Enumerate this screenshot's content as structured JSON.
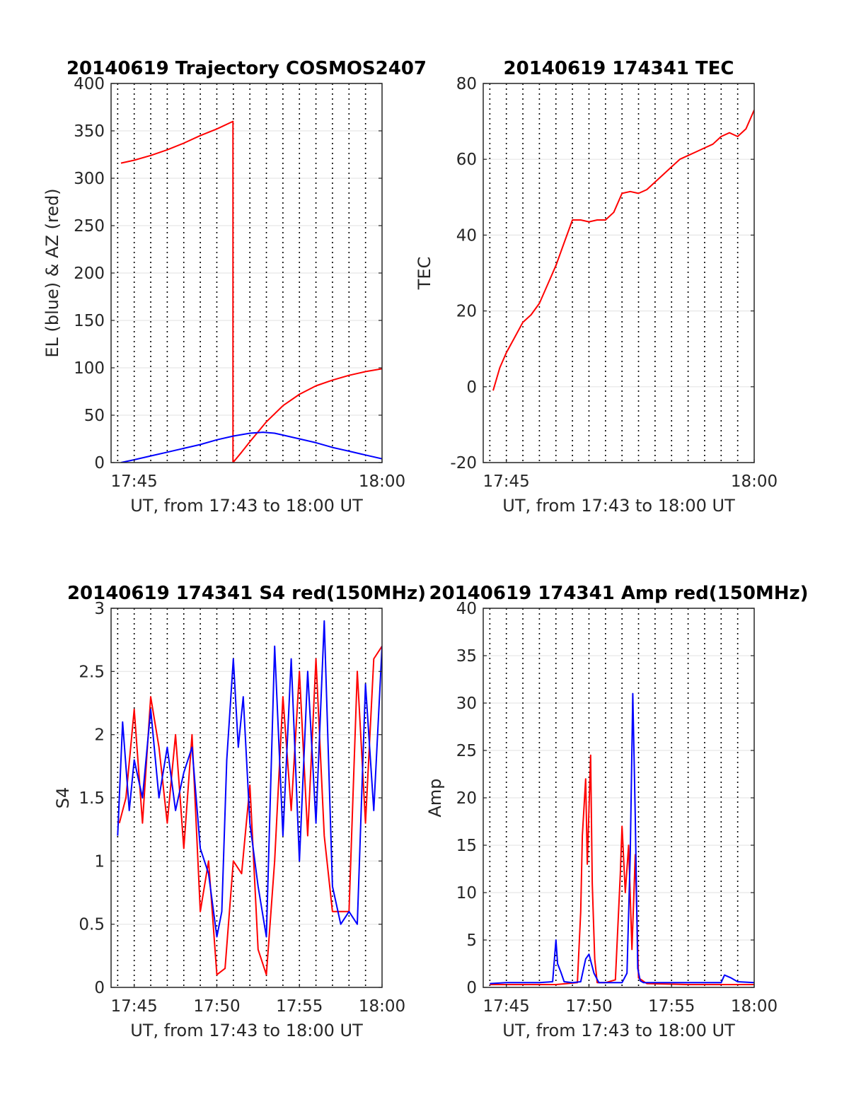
{
  "chart_data": [
    {
      "type": "line",
      "title": "20140619 Trajectory COSMOS2407",
      "xlabel": "UT, from 17:43 to 18:00 UT",
      "ylabel": "EL (blue) & AZ (red)",
      "xlim": [
        43.6,
        60
      ],
      "ylim": [
        0,
        400
      ],
      "yticks": [
        0,
        50,
        100,
        150,
        200,
        250,
        300,
        350,
        400
      ],
      "xticks": [
        {
          "v": 45,
          "label": "17:45"
        },
        {
          "v": 60,
          "label": "18:00"
        }
      ],
      "grid": "horizontal solid, vertical dotted",
      "series": [
        {
          "color": "#ff0000",
          "x": [
            44.2,
            45,
            46,
            47,
            48,
            49,
            50,
            50.98,
            50.98,
            51.5,
            52,
            53,
            54,
            55,
            56,
            57,
            58,
            59,
            60
          ],
          "y": [
            316,
            319,
            324,
            330,
            337,
            345,
            352,
            360,
            0,
            11,
            22,
            43,
            60,
            72,
            81,
            87,
            92,
            96,
            99
          ]
        },
        {
          "color": "#0000ff",
          "x": [
            44.2,
            45,
            46,
            47,
            48,
            49,
            50,
            51,
            52,
            52.8,
            53.5,
            54,
            55,
            56,
            57,
            58,
            59,
            60
          ],
          "y": [
            0,
            3,
            7,
            11,
            15,
            19,
            24,
            28,
            31,
            32,
            31,
            29,
            25,
            21,
            16,
            12,
            8,
            4
          ]
        }
      ]
    },
    {
      "type": "line",
      "title": "20140619 174341 TEC",
      "xlabel": "UT, from 17:43 to 18:00 UT",
      "ylabel": "TEC",
      "xlim": [
        43.6,
        60
      ],
      "ylim": [
        -20,
        80
      ],
      "yticks": [
        -20,
        0,
        20,
        40,
        60,
        80
      ],
      "xticks": [
        {
          "v": 45,
          "label": "17:45"
        },
        {
          "v": 60,
          "label": "18:00"
        }
      ],
      "grid": "horizontal solid, vertical dotted",
      "series": [
        {
          "color": "#ff0000",
          "x": [
            44.2,
            44.6,
            45,
            45.5,
            46,
            46.5,
            47,
            47.5,
            48,
            48.5,
            49,
            49.5,
            50,
            50.5,
            51,
            51.5,
            52,
            52.5,
            53,
            53.5,
            54,
            54.5,
            55,
            55.5,
            56,
            56.5,
            57,
            57.5,
            58,
            58.5,
            59,
            59.5,
            60
          ],
          "y": [
            -1,
            5,
            9,
            13,
            17,
            19,
            22,
            27,
            32,
            38,
            44,
            44,
            43.5,
            44,
            44,
            46,
            51,
            51.5,
            51,
            52,
            54,
            56,
            58,
            60,
            61,
            62,
            63,
            64,
            66,
            67,
            66,
            68,
            73
          ]
        }
      ]
    },
    {
      "type": "line",
      "title": "20140619 174341 S4 red(150MHz)",
      "xlabel": "UT, from 17:43 to 18:00 UT",
      "ylabel": "S4",
      "xlim": [
        43.6,
        60
      ],
      "ylim": [
        0,
        3
      ],
      "yticks": [
        0,
        0.5,
        1,
        1.5,
        2,
        2.5,
        3
      ],
      "ytick_labels": [
        "0",
        "0.5",
        "1",
        "1.5",
        "2",
        "2.5",
        "3"
      ],
      "xticks": [
        {
          "v": 45,
          "label": "17:45"
        },
        {
          "v": 50,
          "label": "17:50"
        },
        {
          "v": 55,
          "label": "17:55"
        },
        {
          "v": 60,
          "label": "18:00"
        }
      ],
      "grid": "horizontal solid, vertical dotted",
      "series": [
        {
          "color": "#ff0000",
          "x": [
            44.1,
            44.5,
            45,
            45.5,
            46,
            46.5,
            47,
            47.5,
            48,
            48.5,
            49,
            49.5,
            50,
            50.5,
            51,
            51.5,
            52,
            52.5,
            53,
            53.5,
            54,
            54.5,
            55,
            55.5,
            56,
            56.5,
            57,
            57.5,
            58,
            58.5,
            59,
            59.5,
            60
          ],
          "y": [
            1.3,
            1.5,
            2.2,
            1.3,
            2.3,
            1.9,
            1.3,
            2.0,
            1.1,
            2.0,
            0.6,
            1.0,
            0.1,
            0.15,
            1.0,
            0.9,
            1.6,
            0.3,
            0.1,
            1.0,
            2.3,
            1.4,
            2.5,
            1.2,
            2.6,
            1.2,
            0.6,
            0.6,
            0.6,
            2.5,
            1.3,
            2.6,
            2.7
          ]
        },
        {
          "color": "#0000ff",
          "x": [
            44.0,
            44.3,
            44.7,
            45,
            45.5,
            46,
            46.5,
            47,
            47.5,
            48,
            48.5,
            49,
            49.5,
            50,
            50.3,
            50.6,
            51,
            51.3,
            51.6,
            52,
            52.5,
            53,
            53.5,
            54,
            54.5,
            55,
            55.5,
            56,
            56.5,
            57,
            57.5,
            58,
            58.5,
            59,
            59.5,
            60
          ],
          "y": [
            1.2,
            2.1,
            1.4,
            1.8,
            1.5,
            2.2,
            1.5,
            1.9,
            1.4,
            1.7,
            1.9,
            1.1,
            0.9,
            0.4,
            0.6,
            1.8,
            2.6,
            1.9,
            2.3,
            1.3,
            0.8,
            0.4,
            2.7,
            1.2,
            2.6,
            1.0,
            2.5,
            1.3,
            2.9,
            0.8,
            0.5,
            0.6,
            0.5,
            2.4,
            1.4,
            2.7
          ]
        }
      ]
    },
    {
      "type": "line",
      "title": "20140619 174341 Amp red(150MHz)",
      "xlabel": "UT, from 17:43 to 18:00 UT",
      "ylabel": "Amp",
      "xlim": [
        43.6,
        60
      ],
      "ylim": [
        0,
        40
      ],
      "yticks": [
        0,
        5,
        10,
        15,
        20,
        25,
        30,
        35,
        40
      ],
      "xticks": [
        {
          "v": 45,
          "label": "17:45"
        },
        {
          "v": 50,
          "label": "17:50"
        },
        {
          "v": 55,
          "label": "17:55"
        },
        {
          "v": 60,
          "label": "18:00"
        }
      ],
      "grid": "horizontal solid, vertical dotted",
      "series": [
        {
          "color": "#ff0000",
          "x": [
            44.0,
            46,
            48,
            49.3,
            49.5,
            49.6,
            49.8,
            49.9,
            50.1,
            50.2,
            50.35,
            50.5,
            51,
            51.6,
            51.9,
            52.0,
            52.2,
            52.4,
            52.6,
            52.8,
            53.0,
            53.5,
            56,
            60
          ],
          "y": [
            0.3,
            0.3,
            0.3,
            0.5,
            8,
            16,
            22,
            13,
            24.5,
            11,
            3,
            0.5,
            0.5,
            0.8,
            12,
            17,
            10,
            15,
            4,
            14,
            1,
            0.4,
            0.3,
            0.3
          ]
        },
        {
          "color": "#0000ff",
          "x": [
            44.0,
            45,
            46,
            47,
            47.8,
            48.0,
            48.1,
            48.3,
            48.5,
            49,
            49.5,
            49.8,
            50.0,
            50.3,
            50.6,
            51,
            52,
            52.3,
            52.5,
            52.65,
            52.8,
            52.95,
            53.1,
            53.3,
            53.6,
            54,
            55,
            56,
            57,
            58,
            58.2,
            58.6,
            59,
            60
          ],
          "y": [
            0.4,
            0.5,
            0.5,
            0.5,
            0.6,
            5,
            2.5,
            1.6,
            0.6,
            0.5,
            0.6,
            3,
            3.5,
            1.5,
            0.5,
            0.5,
            0.5,
            1.5,
            14,
            31,
            18,
            2,
            0.7,
            0.5,
            0.5,
            0.5,
            0.5,
            0.5,
            0.5,
            0.5,
            1.3,
            1.0,
            0.6,
            0.5
          ]
        }
      ]
    }
  ]
}
